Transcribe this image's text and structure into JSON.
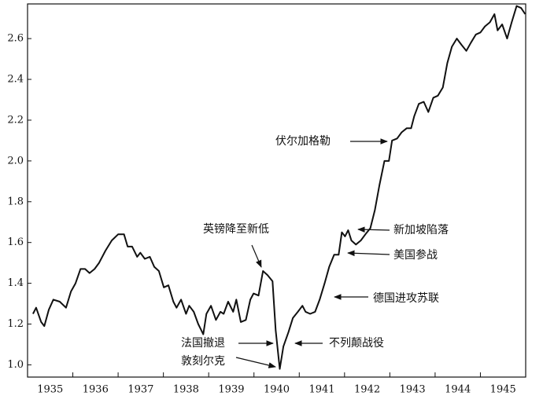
{
  "chart_data": {
    "type": "line",
    "x": [
      1935.12,
      1935.19,
      1935.3,
      1935.37,
      1935.47,
      1935.57,
      1935.71,
      1935.85,
      1935.96,
      1936.06,
      1936.17,
      1936.27,
      1936.37,
      1936.48,
      1936.58,
      1936.72,
      1936.86,
      1937.0,
      1937.13,
      1937.21,
      1937.31,
      1937.42,
      1937.49,
      1937.59,
      1937.7,
      1937.8,
      1937.9,
      1938.01,
      1938.11,
      1938.22,
      1938.29,
      1938.39,
      1938.5,
      1938.57,
      1938.67,
      1938.77,
      1938.88,
      1938.95,
      1939.05,
      1939.16,
      1939.26,
      1939.33,
      1939.43,
      1939.54,
      1939.61,
      1939.71,
      1939.82,
      1939.92,
      1939.99,
      1940.1,
      1940.2,
      1940.3,
      1940.41,
      1940.48,
      1940.57,
      1940.65,
      1940.76,
      1940.86,
      1940.97,
      1941.07,
      1941.14,
      1941.24,
      1941.35,
      1941.45,
      1941.56,
      1941.66,
      1941.77,
      1941.87,
      1941.94,
      1942.01,
      1942.08,
      1942.15,
      1942.25,
      1942.36,
      1942.46,
      1942.57,
      1942.67,
      1942.77,
      1942.88,
      1942.98,
      1943.05,
      1943.16,
      1943.26,
      1943.37,
      1943.47,
      1943.54,
      1943.64,
      1943.75,
      1943.85,
      1943.96,
      1944.06,
      1944.17,
      1944.27,
      1944.37,
      1944.48,
      1944.58,
      1944.69,
      1944.79,
      1944.9,
      1945.0,
      1945.1,
      1945.21,
      1945.31,
      1945.38,
      1945.48,
      1945.59,
      1945.69,
      1945.8,
      1945.9,
      1945.99
    ],
    "series": [
      {
        "color": "#111111",
        "values": [
          1.25,
          1.28,
          1.21,
          1.19,
          1.27,
          1.32,
          1.31,
          1.28,
          1.36,
          1.4,
          1.47,
          1.47,
          1.45,
          1.47,
          1.5,
          1.56,
          1.61,
          1.64,
          1.64,
          1.58,
          1.58,
          1.53,
          1.55,
          1.52,
          1.53,
          1.48,
          1.46,
          1.38,
          1.39,
          1.31,
          1.28,
          1.32,
          1.25,
          1.29,
          1.26,
          1.2,
          1.15,
          1.25,
          1.29,
          1.22,
          1.26,
          1.25,
          1.31,
          1.26,
          1.32,
          1.21,
          1.22,
          1.32,
          1.35,
          1.34,
          1.46,
          1.44,
          1.41,
          1.17,
          0.98,
          1.09,
          1.16,
          1.23,
          1.26,
          1.29,
          1.26,
          1.25,
          1.26,
          1.32,
          1.4,
          1.48,
          1.54,
          1.54,
          1.65,
          1.63,
          1.66,
          1.61,
          1.59,
          1.61,
          1.64,
          1.67,
          1.76,
          1.88,
          2.0,
          2.0,
          2.1,
          2.11,
          2.14,
          2.16,
          2.16,
          2.22,
          2.28,
          2.29,
          2.24,
          2.31,
          2.32,
          2.36,
          2.48,
          2.56,
          2.6,
          2.57,
          2.54,
          2.58,
          2.62,
          2.63,
          2.66,
          2.68,
          2.72,
          2.64,
          2.67,
          2.6,
          2.68,
          2.76,
          2.75,
          2.72
        ]
      }
    ],
    "xlim": [
      1935,
      1946
    ],
    "xticks": [
      {
        "value": 1935.5,
        "label": "1935"
      },
      {
        "value": 1936.5,
        "label": "1936"
      },
      {
        "value": 1937.5,
        "label": "1937"
      },
      {
        "value": 1938.5,
        "label": "1938"
      },
      {
        "value": 1939.5,
        "label": "1939"
      },
      {
        "value": 1940.5,
        "label": "1940"
      },
      {
        "value": 1941.5,
        "label": "1941"
      },
      {
        "value": 1942.5,
        "label": "1942"
      },
      {
        "value": 1943.5,
        "label": "1943"
      },
      {
        "value": 1944.5,
        "label": "1944"
      },
      {
        "value": 1945.5,
        "label": "1945"
      }
    ],
    "xminorticks": [
      1936,
      1937,
      1938,
      1939,
      1940,
      1941,
      1942,
      1943,
      1944,
      1945
    ],
    "ylim": [
      0.94,
      2.77
    ],
    "yticks": [
      {
        "value": 1,
        "label": "1.0"
      },
      1.2,
      1.4,
      1.6,
      1.8,
      {
        "value": 2,
        "label": "2.0"
      },
      2.2,
      2.4,
      2.6
    ],
    "annotations": [
      "伏尔加格勒",
      "英镑降至新低",
      "新加坡陷落",
      "美国参战",
      "德国进攻苏联",
      "法国撤退",
      "敦刻尔克",
      "不列颠战役"
    ]
  }
}
